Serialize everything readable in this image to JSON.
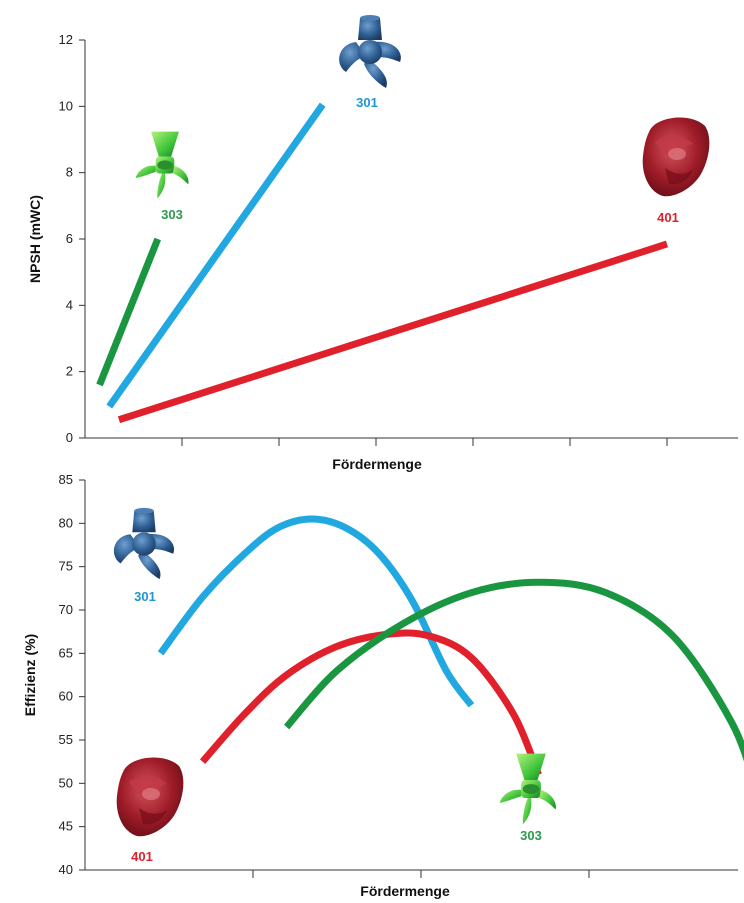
{
  "chart_data": [
    {
      "type": "line",
      "ylabel": "NPSH (mWC)",
      "xlabel": "Fördermenge",
      "ylim": [
        0,
        12
      ],
      "yticks": [
        0,
        2,
        4,
        6,
        8,
        10,
        12
      ],
      "xlim": [
        0,
        7
      ],
      "x_tick_count": 7,
      "x_tick_labels": "none",
      "grid": false,
      "series": [
        {
          "name": "303",
          "color": "#1a9641",
          "x": [
            0.15,
            0.75
          ],
          "y": [
            1.6,
            6.0
          ]
        },
        {
          "name": "301",
          "color": "#21a8e0",
          "x": [
            0.25,
            2.45
          ],
          "y": [
            0.95,
            10.05
          ]
        },
        {
          "name": "401",
          "color": "#e0202a",
          "x": [
            0.35,
            6.0
          ],
          "y": [
            0.55,
            5.85
          ]
        }
      ],
      "pump_labels": [
        {
          "text": "303",
          "color": "#2e9a4e",
          "icon": "green-propeller-icon"
        },
        {
          "text": "301",
          "color": "#1f97d6",
          "icon": "blue-impeller-icon"
        },
        {
          "text": "401",
          "color": "#d9232e",
          "icon": "red-impeller-icon"
        }
      ]
    },
    {
      "type": "line",
      "ylabel": "Effizienz (%)",
      "xlabel": "Fördermenge",
      "ylim": [
        40,
        85
      ],
      "yticks": [
        40,
        45,
        50,
        55,
        60,
        65,
        70,
        75,
        80,
        85
      ],
      "xlim": [
        0,
        4
      ],
      "x_tick_count": 4,
      "x_tick_labels": "none",
      "grid": false,
      "series": [
        {
          "name": "301",
          "color": "#21a8e0",
          "x": [
            0.45,
            0.7,
            0.95,
            1.15,
            1.35,
            1.55,
            1.75,
            1.95,
            2.15,
            2.3
          ],
          "y": [
            65,
            71.5,
            76.5,
            79.5,
            80.5,
            79.5,
            76.5,
            71,
            63,
            59
          ]
        },
        {
          "name": "401",
          "color": "#e0202a",
          "x": [
            0.7,
            0.95,
            1.2,
            1.5,
            1.8,
            2.05,
            2.3,
            2.55,
            2.7
          ],
          "y": [
            52.5,
            58,
            62.5,
            65.8,
            67.2,
            67,
            64.5,
            58,
            51
          ]
        },
        {
          "name": "303",
          "color": "#1a9641",
          "x": [
            1.2,
            1.5,
            1.9,
            2.3,
            2.7,
            3.1,
            3.5,
            3.85,
            4.0
          ],
          "y": [
            56.5,
            63,
            68.5,
            72,
            73.2,
            72,
            67,
            57,
            49
          ]
        }
      ],
      "pump_labels": [
        {
          "text": "301",
          "color": "#1f97d6",
          "icon": "blue-impeller-icon"
        },
        {
          "text": "401",
          "color": "#d9232e",
          "icon": "red-impeller-icon"
        },
        {
          "text": "303",
          "color": "#2e9a4e",
          "icon": "green-propeller-icon"
        }
      ]
    }
  ]
}
